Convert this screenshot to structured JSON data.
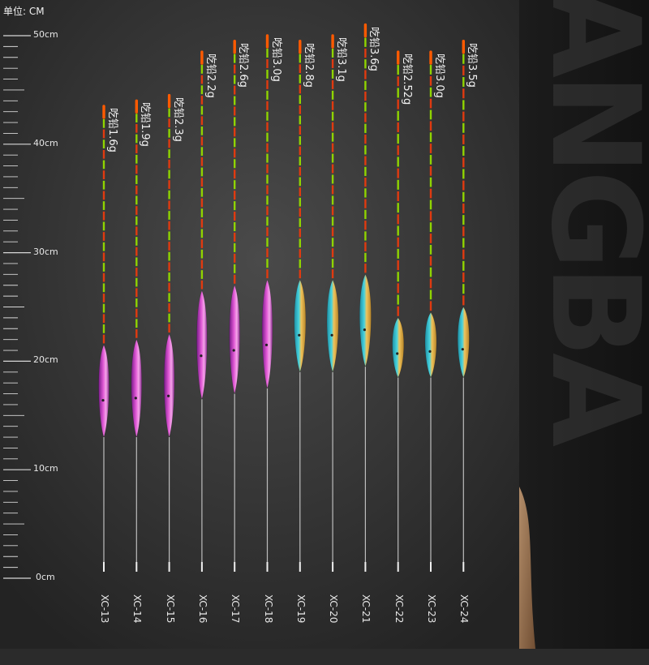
{
  "header": {
    "unit_label": "单位: CM"
  },
  "scale": {
    "labels": [
      {
        "cm": 50,
        "text": "50cm"
      },
      {
        "cm": 40,
        "text": "40cm"
      },
      {
        "cm": 30,
        "text": "30cm"
      },
      {
        "cm": 20,
        "text": "20cm"
      },
      {
        "cm": 10,
        "text": "10cm"
      },
      {
        "cm": 0,
        "text": "0cm"
      }
    ]
  },
  "brand_text": "ANGBA",
  "colors": {
    "background": "#2b2b2b",
    "antenna_green": "#8fd400",
    "antenna_red": "#e03a10",
    "tip_orange": "#ff5a00",
    "body_pink": "#d63fbf",
    "body_cyan_gold": "#34c8d6",
    "body_gold": "#e8b84a"
  },
  "floats": [
    {
      "model": "XC-13",
      "weight": "吃铅1.6g",
      "body": "pink",
      "total_cm": 43.5,
      "body_top_cm": 21.5,
      "body_bottom_cm": 13.0
    },
    {
      "model": "XC-14",
      "weight": "吃铅1.9g",
      "body": "pink",
      "total_cm": 44.0,
      "body_top_cm": 22.0,
      "body_bottom_cm": 13.0
    },
    {
      "model": "XC-15",
      "weight": "吃铅2.3g",
      "body": "pink",
      "total_cm": 44.5,
      "body_top_cm": 22.5,
      "body_bottom_cm": 13.0
    },
    {
      "model": "XC-16",
      "weight": "吃铅2.2g",
      "body": "pink",
      "total_cm": 48.5,
      "body_top_cm": 26.5,
      "body_bottom_cm": 16.5
    },
    {
      "model": "XC-17",
      "weight": "吃铅2.6g",
      "body": "pink",
      "total_cm": 49.5,
      "body_top_cm": 27.0,
      "body_bottom_cm": 17.0
    },
    {
      "model": "XC-18",
      "weight": "吃铅3.0g",
      "body": "pink",
      "total_cm": 50.0,
      "body_top_cm": 27.5,
      "body_bottom_cm": 17.5
    },
    {
      "model": "XC-19",
      "weight": "吃铅2.8g",
      "body": "cyan",
      "total_cm": 49.5,
      "body_top_cm": 27.5,
      "body_bottom_cm": 19.0
    },
    {
      "model": "XC-20",
      "weight": "吃铅3.1g",
      "body": "cyan",
      "total_cm": 50.0,
      "body_top_cm": 27.5,
      "body_bottom_cm": 19.0
    },
    {
      "model": "XC-21",
      "weight": "吃铅3.6g",
      "body": "cyan",
      "total_cm": 51.0,
      "body_top_cm": 28.0,
      "body_bottom_cm": 19.5
    },
    {
      "model": "XC-22",
      "weight": "吃铅2.52g",
      "body": "cyan",
      "total_cm": 48.5,
      "body_top_cm": 24.0,
      "body_bottom_cm": 18.5
    },
    {
      "model": "XC-23",
      "weight": "吃铅3.0g",
      "body": "cyan",
      "total_cm": 48.5,
      "body_top_cm": 24.5,
      "body_bottom_cm": 18.5
    },
    {
      "model": "XC-24",
      "weight": "吃铅3.5g",
      "body": "cyan",
      "total_cm": 49.5,
      "body_top_cm": 25.0,
      "body_bottom_cm": 18.5
    }
  ]
}
